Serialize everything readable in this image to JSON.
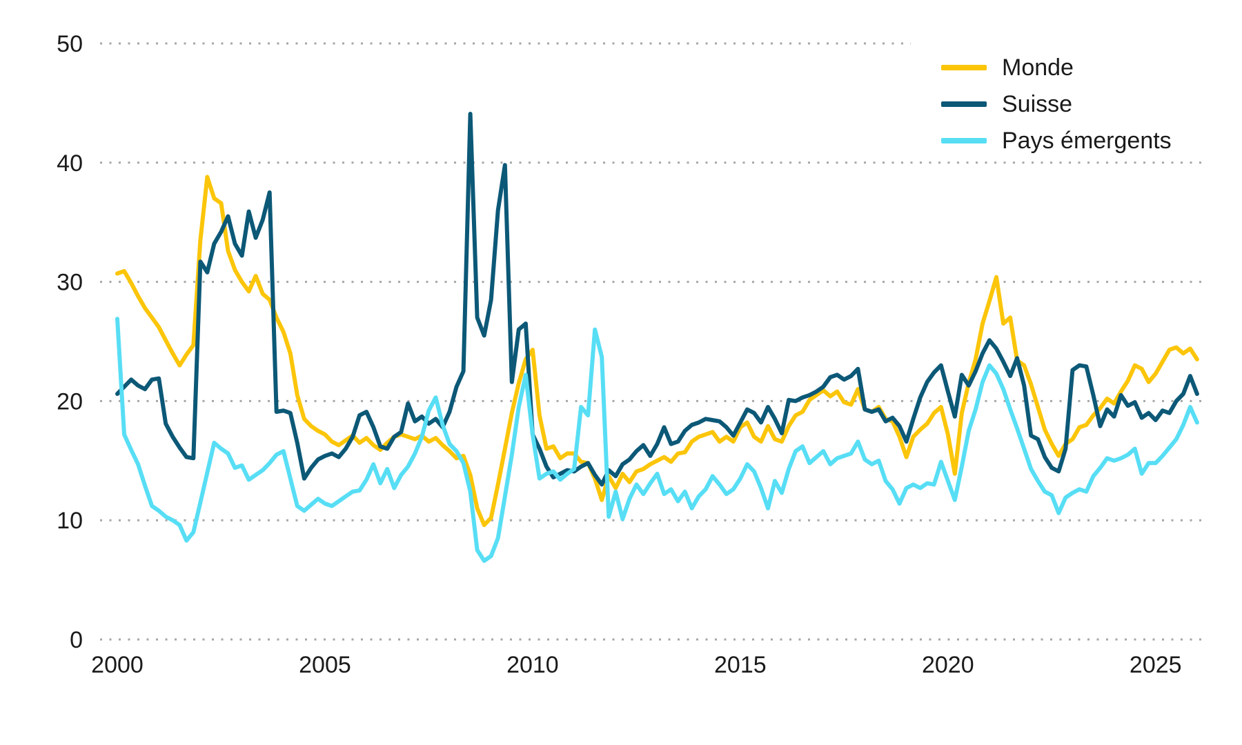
{
  "colors": {
    "background": "#FFFFFF",
    "grid": "#A6A6A6",
    "text": "#1A1A1A"
  },
  "chart_data": {
    "type": "line",
    "title": "",
    "xlabel": "",
    "ylabel": "",
    "grid": "dotted-horizontal",
    "legend_position": "top-right",
    "x_start": 2000,
    "x_step_years": 0.166667,
    "xlim": [
      2000,
      2026.2
    ],
    "ylim": [
      0,
      50
    ],
    "xticks": [
      2000,
      2005,
      2010,
      2015,
      2020,
      2025
    ],
    "yticks": [
      0,
      10,
      20,
      30,
      40,
      50
    ],
    "series": [
      {
        "name": "Monde",
        "color": "#FBC50A",
        "values": [
          30.7,
          30.9,
          29.9,
          28.8,
          27.8,
          27.0,
          26.2,
          25.1,
          24.0,
          23.0,
          23.9,
          24.7,
          33.5,
          38.8,
          37.0,
          36.6,
          32.6,
          31.0,
          30.0,
          29.2,
          30.5,
          29.0,
          28.5,
          27.0,
          25.8,
          24.0,
          20.5,
          18.5,
          17.9,
          17.5,
          17.2,
          16.6,
          16.3,
          16.7,
          17.1,
          16.5,
          16.9,
          16.3,
          15.9,
          16.5,
          17.0,
          17.2,
          17.0,
          16.8,
          17.1,
          16.6,
          16.9,
          16.3,
          15.8,
          15.2,
          15.4,
          13.8,
          11.0,
          9.6,
          10.2,
          13.0,
          16.0,
          19.0,
          21.5,
          23.5,
          24.3,
          18.8,
          16.0,
          16.2,
          15.2,
          15.6,
          15.6,
          14.9,
          14.8,
          13.5,
          11.7,
          13.7,
          12.7,
          13.9,
          13.2,
          14.1,
          14.3,
          14.7,
          15.0,
          15.3,
          14.9,
          15.6,
          15.7,
          16.6,
          17.0,
          17.2,
          17.4,
          16.6,
          17.0,
          16.6,
          17.8,
          18.2,
          17.0,
          16.6,
          17.9,
          16.8,
          16.6,
          17.9,
          18.8,
          19.1,
          20.1,
          20.5,
          20.9,
          20.4,
          20.8,
          19.9,
          19.7,
          21.0,
          19.3,
          19.1,
          19.5,
          18.5,
          18.3,
          17.0,
          15.3,
          17.0,
          17.6,
          18.1,
          19.0,
          19.5,
          17.2,
          13.9,
          19.0,
          21.5,
          23.5,
          26.5,
          28.4,
          30.4,
          26.5,
          27.0,
          23.4,
          23.0,
          21.4,
          19.5,
          17.6,
          16.4,
          15.4,
          16.4,
          16.8,
          17.8,
          18.0,
          18.8,
          19.4,
          20.2,
          19.8,
          20.8,
          21.7,
          23.0,
          22.7,
          21.6,
          22.3,
          23.3,
          24.3,
          24.5,
          24.0,
          24.4,
          23.5
        ]
      },
      {
        "name": "Suisse",
        "color": "#0C5877",
        "values": [
          20.6,
          21.2,
          21.8,
          21.3,
          21.0,
          21.8,
          21.9,
          18.1,
          17.0,
          16.1,
          15.3,
          15.2,
          31.7,
          30.8,
          33.2,
          34.2,
          35.5,
          33.2,
          32.2,
          35.9,
          33.7,
          35.2,
          37.5,
          19.1,
          19.2,
          19.0,
          16.5,
          13.5,
          14.4,
          15.1,
          15.4,
          15.6,
          15.3,
          16.0,
          17.0,
          18.8,
          19.1,
          17.8,
          16.2,
          16.0,
          17.0,
          17.4,
          19.8,
          18.3,
          18.7,
          18.1,
          18.5,
          17.8,
          19.1,
          21.2,
          22.5,
          44.1,
          27.0,
          25.5,
          28.5,
          36.0,
          39.8,
          21.6,
          26.0,
          26.5,
          17.2,
          16.0,
          14.5,
          13.6,
          13.9,
          14.2,
          14.1,
          14.5,
          14.8,
          13.8,
          13.0,
          14.2,
          13.7,
          14.7,
          15.1,
          15.8,
          16.3,
          15.4,
          16.4,
          17.8,
          16.4,
          16.6,
          17.5,
          18.0,
          18.2,
          18.5,
          18.4,
          18.3,
          17.8,
          17.1,
          18.2,
          19.3,
          19.0,
          18.2,
          19.5,
          18.5,
          17.3,
          20.1,
          20.0,
          20.3,
          20.5,
          20.8,
          21.2,
          22.0,
          22.2,
          21.8,
          22.1,
          22.7,
          19.3,
          19.1,
          19.3,
          18.3,
          18.6,
          17.9,
          16.6,
          18.5,
          20.3,
          21.6,
          22.4,
          23.0,
          20.8,
          18.7,
          22.2,
          21.3,
          22.5,
          24.0,
          25.1,
          24.4,
          23.3,
          22.1,
          23.6,
          21.3,
          17.1,
          16.8,
          15.3,
          14.4,
          14.1,
          16.0,
          22.6,
          23.0,
          22.9,
          20.5,
          17.9,
          19.3,
          18.7,
          20.5,
          19.6,
          19.9,
          18.6,
          19.0,
          18.4,
          19.2,
          19.0,
          20.0,
          20.6,
          22.1,
          20.6
        ]
      },
      {
        "name": "Pays émergents",
        "color": "#57DEF5",
        "values": [
          26.9,
          17.2,
          15.9,
          14.7,
          12.9,
          11.2,
          10.8,
          10.3,
          10.0,
          9.6,
          8.3,
          9.0,
          11.5,
          14.0,
          16.5,
          16.0,
          15.6,
          14.4,
          14.6,
          13.4,
          13.8,
          14.2,
          14.8,
          15.5,
          15.8,
          13.5,
          11.2,
          10.8,
          11.3,
          11.8,
          11.4,
          11.2,
          11.6,
          12.0,
          12.4,
          12.5,
          13.4,
          14.7,
          13.1,
          14.3,
          12.7,
          13.8,
          14.5,
          15.6,
          17.0,
          19.2,
          20.3,
          18.0,
          16.4,
          15.8,
          14.8,
          12.4,
          7.5,
          6.6,
          7.0,
          8.5,
          12.0,
          15.5,
          19.5,
          22.2,
          17.2,
          13.5,
          13.9,
          14.1,
          13.4,
          13.9,
          14.3,
          19.5,
          18.8,
          26.0,
          23.7,
          10.3,
          12.4,
          10.1,
          11.8,
          13.0,
          12.2,
          13.1,
          13.9,
          12.2,
          12.6,
          11.6,
          12.4,
          11.0,
          12.0,
          12.6,
          13.7,
          13.0,
          12.2,
          12.6,
          13.5,
          14.7,
          14.1,
          12.7,
          11.0,
          13.3,
          12.3,
          14.3,
          15.8,
          16.2,
          14.8,
          15.3,
          15.8,
          14.7,
          15.2,
          15.4,
          15.6,
          16.6,
          15.1,
          14.7,
          15.0,
          13.3,
          12.6,
          11.4,
          12.7,
          13.0,
          12.7,
          13.1,
          13.0,
          14.9,
          13.3,
          11.7,
          14.5,
          17.5,
          19.3,
          21.6,
          23.0,
          22.3,
          21.0,
          19.3,
          17.7,
          16.0,
          14.3,
          13.3,
          12.4,
          12.1,
          10.6,
          11.9,
          12.3,
          12.6,
          12.4,
          13.7,
          14.4,
          15.2,
          15.0,
          15.2,
          15.5,
          16.0,
          13.9,
          14.8,
          14.8,
          15.4,
          16.1,
          16.8,
          18.0,
          19.5,
          18.2
        ]
      }
    ]
  }
}
